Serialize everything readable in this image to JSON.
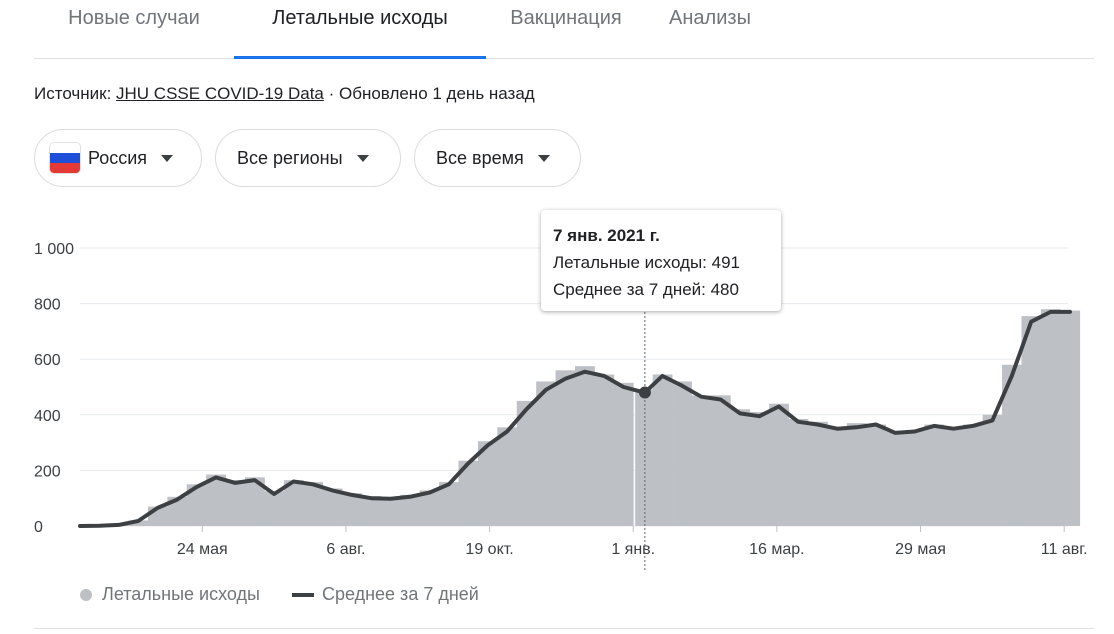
{
  "tabs": [
    {
      "label": "Новые случаи"
    },
    {
      "label": "Летальные исходы"
    },
    {
      "label": "Вакцинация"
    },
    {
      "label": "Анализы"
    }
  ],
  "source": {
    "prefix": "Источник:",
    "link": "JHU CSSE COVID-19 Data",
    "updated": "· Обновлено 1 день назад"
  },
  "filters": {
    "country": "Россия",
    "regions": "Все регионы",
    "time": "Все время"
  },
  "colors": {
    "accent": "#1a73e8",
    "bars": "#bdc1c6",
    "line": "#3c4043"
  },
  "tooltip": {
    "date": "7 янв. 2021 г.",
    "deaths": "Летальные исходы: 491",
    "avg": "Среднее за 7 дней: 480"
  },
  "legend": {
    "bars": "Летальные исходы",
    "line": "Среднее за 7 дней"
  },
  "chart_data": {
    "type": "bar",
    "title": "",
    "xlabel": "",
    "ylabel": "",
    "ylim": [
      0,
      1000
    ],
    "yticks": [
      0,
      200,
      400,
      600,
      800,
      1000
    ],
    "ytick_labels": [
      "0",
      "200",
      "400",
      "600",
      "800",
      "1 000"
    ],
    "xtick_labels": [
      "24 мая",
      "6 авг.",
      "19 окт.",
      "1 янв.",
      "16 мар.",
      "29 мая",
      "11 авг."
    ],
    "xtick_dates": [
      "2020-05-24",
      "2020-08-06",
      "2020-10-19",
      "2021-01-01",
      "2021-03-16",
      "2021-05-29",
      "2021-08-11"
    ],
    "grid": true,
    "legend": "bottom-left",
    "highlight_date": "2021-01-07",
    "series": [
      {
        "name": "Летальные исходы",
        "style": "bar",
        "x": [
          "2020-03-22",
          "2020-04-01",
          "2020-04-11",
          "2020-04-21",
          "2020-05-01",
          "2020-05-11",
          "2020-05-21",
          "2020-05-31",
          "2020-06-10",
          "2020-06-20",
          "2020-06-30",
          "2020-07-10",
          "2020-07-20",
          "2020-07-30",
          "2020-08-09",
          "2020-08-19",
          "2020-08-29",
          "2020-09-08",
          "2020-09-18",
          "2020-09-28",
          "2020-10-08",
          "2020-10-18",
          "2020-10-28",
          "2020-11-07",
          "2020-11-17",
          "2020-11-27",
          "2020-12-07",
          "2020-12-17",
          "2020-12-27",
          "2021-01-07",
          "2021-01-16",
          "2021-01-26",
          "2021-02-05",
          "2021-02-15",
          "2021-02-25",
          "2021-03-07",
          "2021-03-17",
          "2021-03-27",
          "2021-04-06",
          "2021-04-16",
          "2021-04-26",
          "2021-05-06",
          "2021-05-16",
          "2021-05-26",
          "2021-06-05",
          "2021-06-15",
          "2021-06-25",
          "2021-07-05",
          "2021-07-15",
          "2021-07-25",
          "2021-08-04",
          "2021-08-14"
        ],
        "values": [
          0,
          2,
          5,
          20,
          70,
          105,
          150,
          185,
          165,
          175,
          125,
          165,
          158,
          135,
          118,
          108,
          103,
          112,
          128,
          158,
          235,
          305,
          355,
          450,
          520,
          560,
          575,
          545,
          515,
          491,
          545,
          520,
          470,
          470,
          420,
          410,
          440,
          385,
          375,
          355,
          370,
          365,
          340,
          345,
          365,
          355,
          365,
          400,
          580,
          755,
          780,
          775
        ]
      },
      {
        "name": "Среднее за 7 дней",
        "style": "line",
        "x": [
          "2020-03-22",
          "2020-04-01",
          "2020-04-11",
          "2020-04-21",
          "2020-05-01",
          "2020-05-11",
          "2020-05-21",
          "2020-05-31",
          "2020-06-10",
          "2020-06-20",
          "2020-06-30",
          "2020-07-10",
          "2020-07-20",
          "2020-07-30",
          "2020-08-09",
          "2020-08-19",
          "2020-08-29",
          "2020-09-08",
          "2020-09-18",
          "2020-09-28",
          "2020-10-08",
          "2020-10-18",
          "2020-10-28",
          "2020-11-07",
          "2020-11-17",
          "2020-11-27",
          "2020-12-07",
          "2020-12-17",
          "2020-12-27",
          "2021-01-07",
          "2021-01-16",
          "2021-01-26",
          "2021-02-05",
          "2021-02-15",
          "2021-02-25",
          "2021-03-07",
          "2021-03-17",
          "2021-03-27",
          "2021-04-06",
          "2021-04-16",
          "2021-04-26",
          "2021-05-06",
          "2021-05-16",
          "2021-05-26",
          "2021-06-05",
          "2021-06-15",
          "2021-06-25",
          "2021-07-05",
          "2021-07-15",
          "2021-07-25",
          "2021-08-04",
          "2021-08-14"
        ],
        "values": [
          0,
          1,
          4,
          18,
          65,
          95,
          140,
          175,
          155,
          165,
          115,
          160,
          150,
          128,
          112,
          100,
          98,
          105,
          120,
          150,
          225,
          290,
          340,
          420,
          490,
          530,
          555,
          540,
          500,
          480,
          540,
          505,
          465,
          455,
          405,
          395,
          430,
          375,
          365,
          350,
          355,
          365,
          335,
          340,
          360,
          350,
          360,
          380,
          540,
          735,
          770,
          770
        ]
      }
    ]
  }
}
